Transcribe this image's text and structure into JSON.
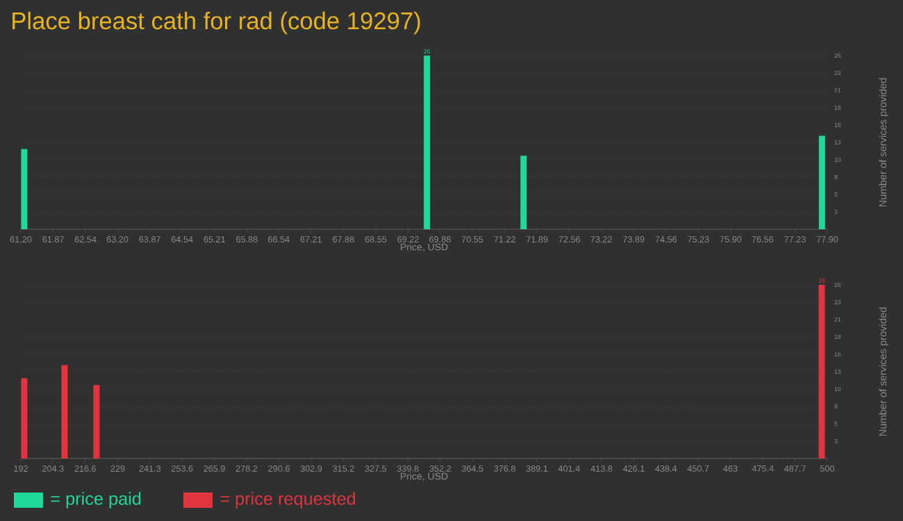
{
  "chart_data": [
    {
      "type": "bar",
      "title": "Place breast cath for rad (code 19297)",
      "xlabel": "Price, USD",
      "ylabel": "Number of services provided",
      "x": [
        61.27,
        69.61,
        71.61,
        77.79
      ],
      "series": [
        {
          "name": "= price paid",
          "color": "#1fd89a",
          "values": [
            12,
            26,
            11,
            14
          ],
          "value_labels": [
            null,
            "26",
            null,
            null
          ]
        }
      ],
      "xlim": [
        61.2,
        77.9
      ],
      "xticks": [
        {
          "value": 61.2,
          "label": "61.20"
        },
        61.87,
        62.54,
        {
          "value": 63.2,
          "label": "63.20"
        },
        63.87,
        64.54,
        65.21,
        65.88,
        66.54,
        67.21,
        67.88,
        68.55,
        69.22,
        69.88,
        70.55,
        71.22,
        71.89,
        72.56,
        73.22,
        73.89,
        74.56,
        75.23,
        {
          "value": 75.9,
          "label": "75.90"
        },
        76.56,
        77.23,
        {
          "value": 77.9,
          "label": "77.90"
        }
      ],
      "ylim": [
        0,
        26
      ],
      "yticks": [
        {
          "value": 2.6,
          "label": "3"
        },
        {
          "value": 5.2,
          "label": "5"
        },
        {
          "value": 7.8,
          "label": "8"
        },
        {
          "value": 10.4,
          "label": "10"
        },
        {
          "value": 13,
          "label": "13"
        },
        {
          "value": 15.6,
          "label": "16"
        },
        {
          "value": 18.2,
          "label": "18"
        },
        {
          "value": 20.8,
          "label": "21"
        },
        {
          "value": 23.4,
          "label": "23"
        },
        {
          "value": 26,
          "label": "26"
        }
      ],
      "grid": "y",
      "legend": "bottom left"
    },
    {
      "type": "bar",
      "xlabel": "Price, USD",
      "ylabel": "Number of services provided",
      "x": [
        193.3,
        208.7,
        220.9,
        497.9
      ],
      "series": [
        {
          "name": "= price requested",
          "color": "#e0343f",
          "values": [
            12,
            14,
            11,
            26
          ],
          "value_labels": [
            null,
            null,
            null,
            "26"
          ]
        }
      ],
      "xlim": [
        192,
        500
      ],
      "xticks": [
        192,
        204.3,
        216.6,
        229,
        241.3,
        253.6,
        265.9,
        278.2,
        290.6,
        302.9,
        315.2,
        327.5,
        339.8,
        352.2,
        364.5,
        376.8,
        389.1,
        401.4,
        413.8,
        426.1,
        438.4,
        450.7,
        463,
        475.4,
        487.7,
        500
      ],
      "ylim": [
        0,
        26
      ],
      "yticks": [
        {
          "value": 2.6,
          "label": "3"
        },
        {
          "value": 5.2,
          "label": "5"
        },
        {
          "value": 7.8,
          "label": "8"
        },
        {
          "value": 10.4,
          "label": "10"
        },
        {
          "value": 13,
          "label": "13"
        },
        {
          "value": 15.6,
          "label": "16"
        },
        {
          "value": 18.2,
          "label": "18"
        },
        {
          "value": 20.8,
          "label": "21"
        },
        {
          "value": 23.4,
          "label": "23"
        },
        {
          "value": 26,
          "label": "26"
        }
      ],
      "grid": "y",
      "legend": "bottom left"
    }
  ]
}
